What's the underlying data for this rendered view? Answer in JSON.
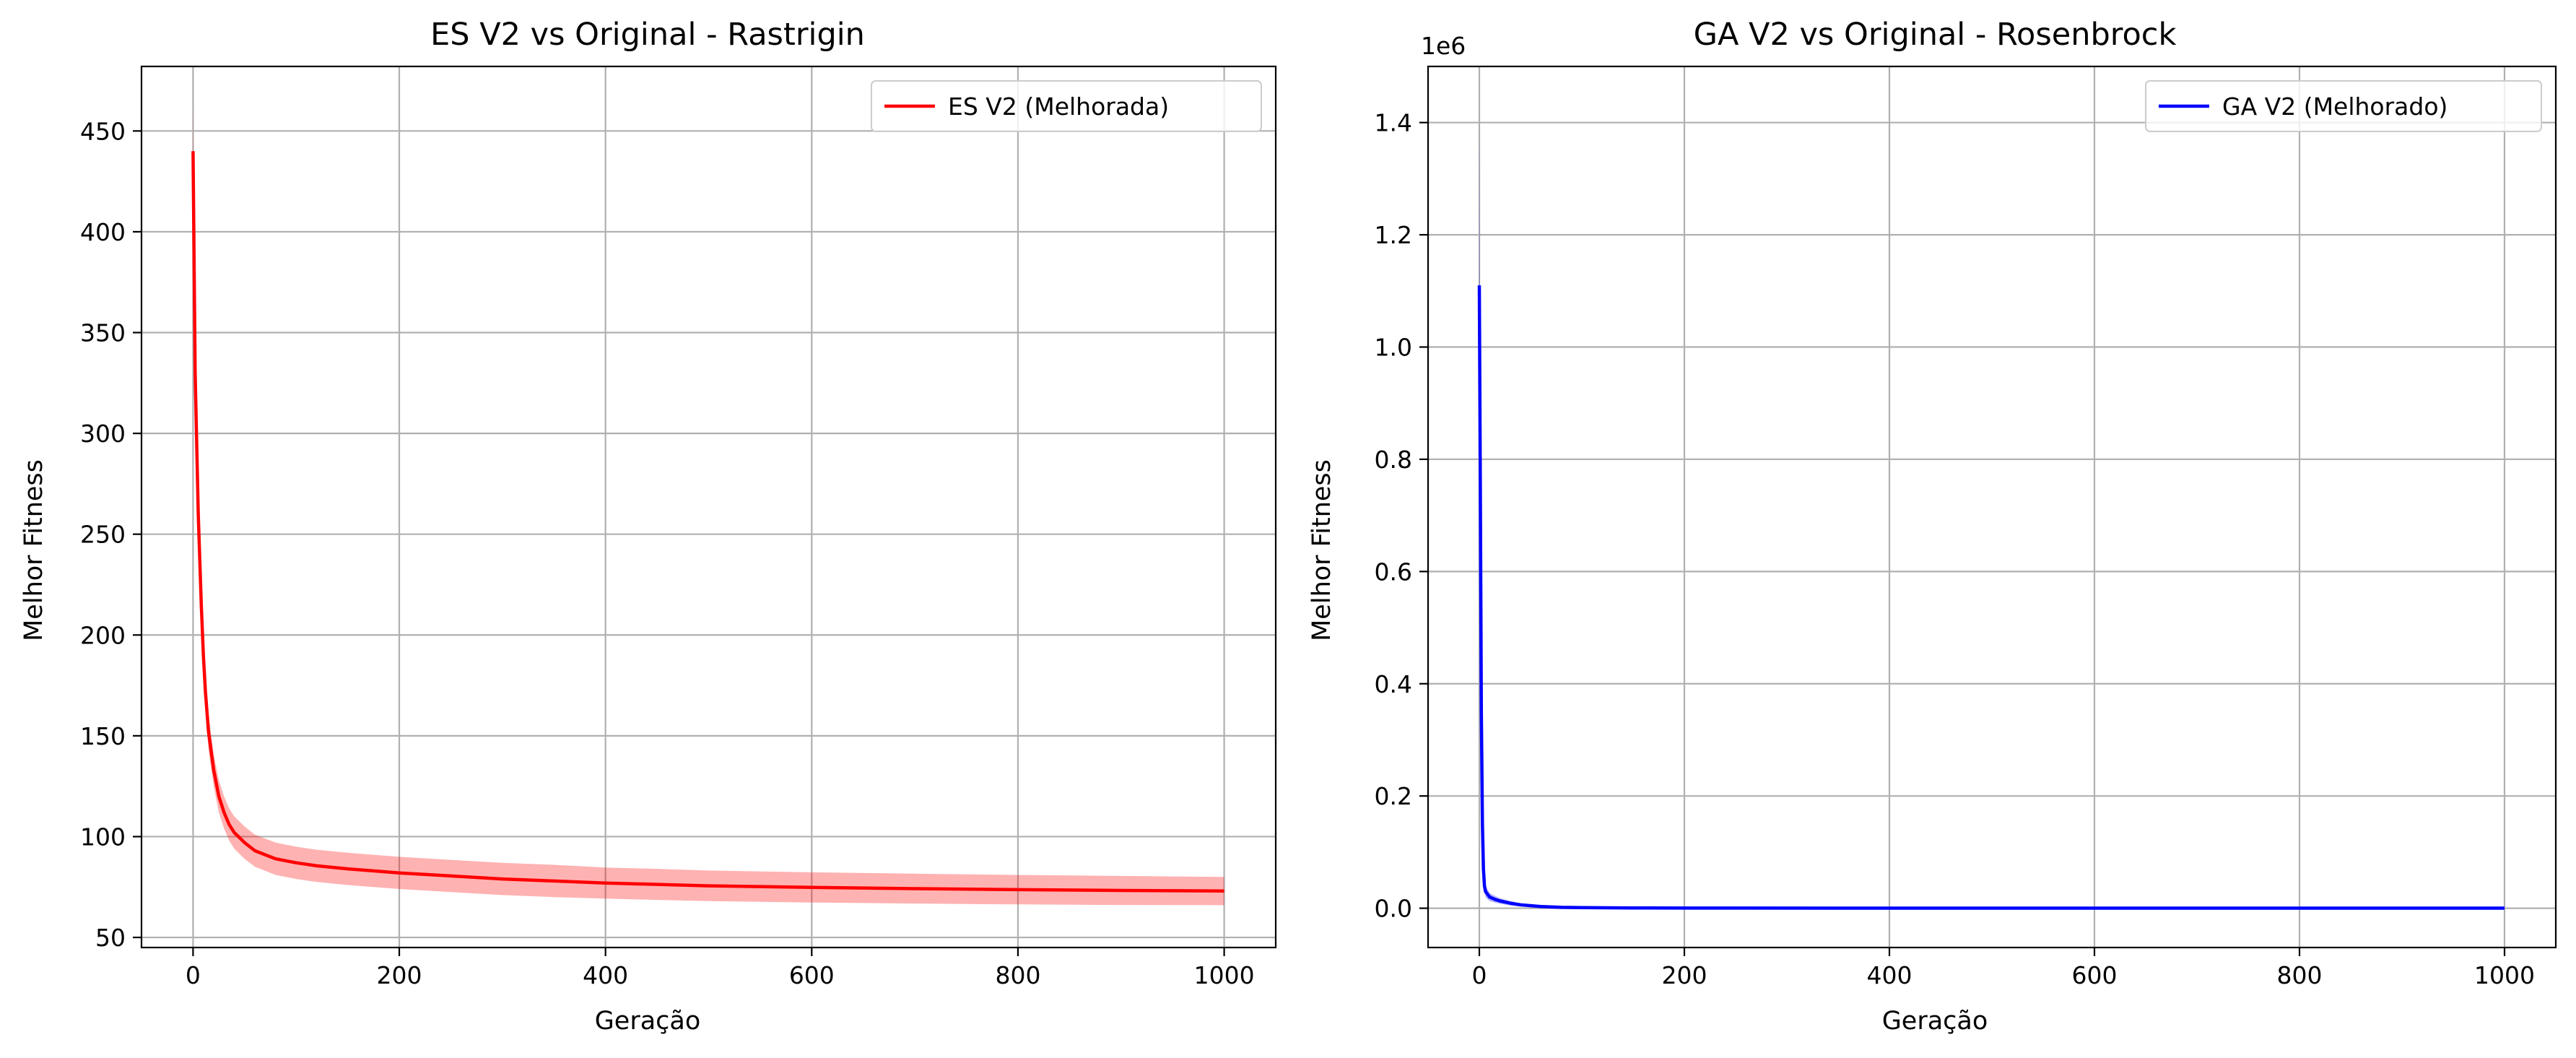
{
  "chart_data": [
    {
      "type": "line",
      "title": "ES V2 vs Original - Rastrigin",
      "xlabel": "Geração",
      "ylabel": "Melhor Fitness",
      "xlim": [
        -50,
        1050
      ],
      "ylim": [
        45,
        482
      ],
      "xticks": [
        0,
        200,
        400,
        600,
        800,
        1000
      ],
      "xtick_labels": [
        "0",
        "200",
        "400",
        "600",
        "800",
        "1000"
      ],
      "yticks": [
        50,
        100,
        150,
        200,
        250,
        300,
        350,
        400,
        450
      ],
      "ytick_labels": [
        "50",
        "100",
        "150",
        "200",
        "250",
        "300",
        "350",
        "400",
        "450"
      ],
      "offset_label": "",
      "grid": true,
      "legend_position": "top-right",
      "series": [
        {
          "name": "ES V2 (Melhorada)",
          "color": "#ff0000",
          "band_color": "#ff0000",
          "x": [
            0,
            2,
            5,
            8,
            10,
            12,
            15,
            20,
            25,
            30,
            35,
            40,
            50,
            60,
            70,
            80,
            100,
            120,
            150,
            200,
            250,
            300,
            350,
            400,
            450,
            500,
            600,
            700,
            800,
            900,
            1000
          ],
          "y": [
            440,
            330,
            260,
            215,
            190,
            172,
            152,
            133,
            120,
            112,
            106,
            102,
            97,
            93,
            91,
            89,
            87,
            85.5,
            84,
            82,
            80.5,
            79,
            78,
            77,
            76.3,
            75.6,
            74.8,
            74.2,
            73.7,
            73.3,
            73
          ],
          "y_lower": [
            415,
            310,
            245,
            203,
            180,
            163,
            143,
            125,
            112,
            104,
            98,
            94,
            89,
            85,
            83,
            81,
            79,
            77.5,
            76,
            74,
            72.5,
            71,
            70,
            69.3,
            68.6,
            68,
            67.3,
            66.8,
            66.4,
            66.1,
            66
          ],
          "y_upper": [
            465,
            350,
            275,
            227,
            200,
            181,
            161,
            141,
            128,
            120,
            114,
            110,
            105,
            101,
            99,
            97,
            95,
            93.5,
            92,
            90,
            88.5,
            87,
            86,
            84.7,
            84,
            83.2,
            82.3,
            81.6,
            81,
            80.5,
            80
          ]
        }
      ]
    },
    {
      "type": "line",
      "title": "GA V2 vs Original - Rosenbrock",
      "xlabel": "Geração",
      "ylabel": "Melhor Fitness",
      "xlim": [
        -50,
        1050
      ],
      "ylim": [
        -0.07,
        1.5
      ],
      "xticks": [
        0,
        200,
        400,
        600,
        800,
        1000
      ],
      "xtick_labels": [
        "0",
        "200",
        "400",
        "600",
        "800",
        "1000"
      ],
      "yticks": [
        0.0,
        0.2,
        0.4,
        0.6,
        0.8,
        1.0,
        1.2,
        1.4
      ],
      "ytick_labels": [
        "0.0",
        "0.2",
        "0.4",
        "0.6",
        "0.8",
        "1.0",
        "1.2",
        "1.4"
      ],
      "offset_label": "1e6",
      "grid": true,
      "legend_position": "top-right",
      "series": [
        {
          "name": "GA V2 (Melhorado)",
          "color": "#0000ff",
          "band_color": "#0000ff",
          "x": [
            0,
            1,
            2,
            3,
            4,
            5,
            6,
            8,
            10,
            15,
            20,
            30,
            40,
            60,
            80,
            100,
            150,
            200,
            400,
            600,
            800,
            1000
          ],
          "y": [
            1.11,
            0.75,
            0.35,
            0.15,
            0.07,
            0.04,
            0.03,
            0.025,
            0.02,
            0.016,
            0.013,
            0.009,
            0.006,
            0.003,
            0.0015,
            0.001,
            0.0005,
            0.0003,
            0.0001,
            0.0001,
            0.0001,
            0.0001
          ],
          "y_lower": [
            0.8,
            0.55,
            0.25,
            0.1,
            0.05,
            0.028,
            0.02,
            0.016,
            0.013,
            0.01,
            0.008,
            0.005,
            0.003,
            0.0015,
            0.0007,
            0.0004,
            0.0002,
            0.0001,
            0,
            0,
            0,
            0
          ],
          "y_upper": [
            1.42,
            0.95,
            0.45,
            0.2,
            0.09,
            0.052,
            0.04,
            0.034,
            0.027,
            0.022,
            0.018,
            0.013,
            0.009,
            0.0045,
            0.0023,
            0.0016,
            0.0008,
            0.0005,
            0.0002,
            0.0002,
            0.0002,
            0.0002
          ]
        }
      ]
    }
  ]
}
